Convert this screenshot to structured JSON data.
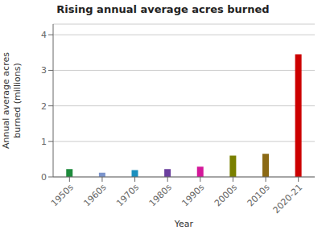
{
  "chart_data": {
    "type": "bar",
    "title": "Rising annual average acres burned",
    "xlabel": "Year",
    "ylabel": "Annual average acres\nburned (millions)",
    "categories": [
      "1950s",
      "1960s",
      "1970s",
      "1980s",
      "1990s",
      "2000s",
      "2010s",
      "2020-21"
    ],
    "values": [
      0.22,
      0.12,
      0.19,
      0.22,
      0.29,
      0.6,
      0.65,
      3.45
    ],
    "colors": [
      "#1e8b3c",
      "#7b94cc",
      "#1b8fbe",
      "#6b3f9e",
      "#d4189a",
      "#7a8000",
      "#8b6914",
      "#cc0000"
    ],
    "ylim": [
      0,
      4.3
    ],
    "yticks": [
      0,
      1,
      2,
      3,
      4
    ],
    "grid": true
  }
}
